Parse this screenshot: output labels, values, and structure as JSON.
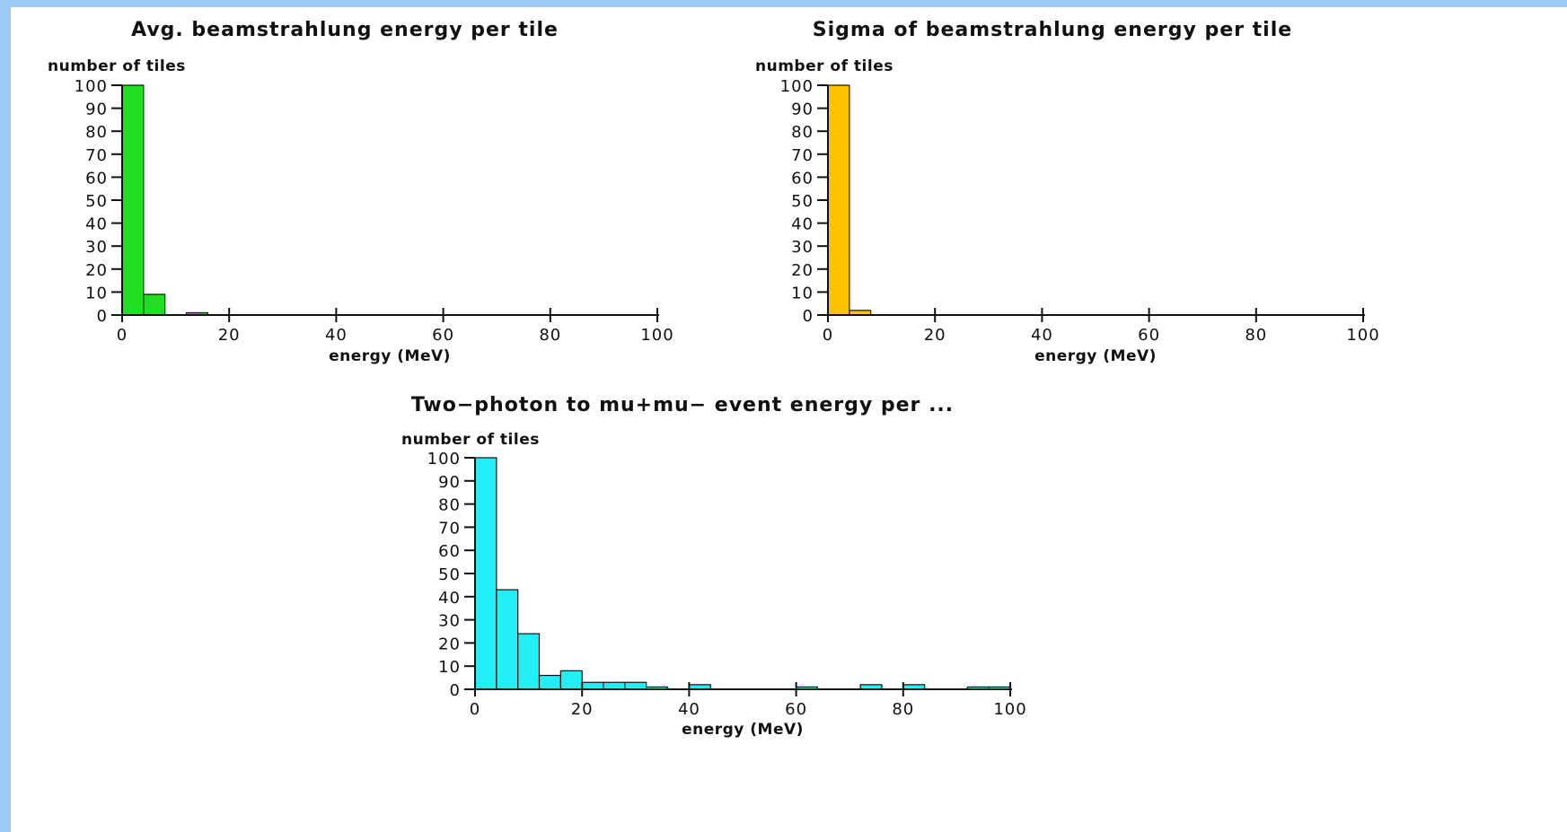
{
  "chart_data": [
    {
      "type": "bar",
      "title": "Avg. beamstrahlung energy per tile",
      "ylabel": "number of tiles",
      "xlabel": "energy (MeV)",
      "bin_width": 4,
      "bins": [
        {
          "x": 0,
          "value": 100
        },
        {
          "x": 4,
          "value": 9
        },
        {
          "x": 12,
          "value": 1
        }
      ],
      "xlim": [
        0,
        100
      ],
      "ylim": [
        0,
        100
      ],
      "xticks": [
        0,
        20,
        40,
        60,
        80,
        100
      ],
      "yticks": [
        0,
        10,
        20,
        30,
        40,
        50,
        60,
        70,
        80,
        90,
        100
      ],
      "color": "#22dd22",
      "grid": false
    },
    {
      "type": "bar",
      "title": "Sigma of beamstrahlung energy per tile",
      "ylabel": "number of tiles",
      "xlabel": "energy (MeV)",
      "bin_width": 4,
      "bins": [
        {
          "x": 0,
          "value": 100
        },
        {
          "x": 4,
          "value": 2
        }
      ],
      "xlim": [
        0,
        100
      ],
      "ylim": [
        0,
        100
      ],
      "xticks": [
        0,
        20,
        40,
        60,
        80,
        100
      ],
      "yticks": [
        0,
        10,
        20,
        30,
        40,
        50,
        60,
        70,
        80,
        90,
        100
      ],
      "color": "#ffc200",
      "grid": false
    },
    {
      "type": "bar",
      "title": "Two−photon to mu+mu− event energy per ...",
      "ylabel": "number of tiles",
      "xlabel": "energy (MeV)",
      "bin_width": 4,
      "bins": [
        {
          "x": 0,
          "value": 100
        },
        {
          "x": 4,
          "value": 43
        },
        {
          "x": 8,
          "value": 24
        },
        {
          "x": 12,
          "value": 6
        },
        {
          "x": 16,
          "value": 8
        },
        {
          "x": 20,
          "value": 3
        },
        {
          "x": 24,
          "value": 3
        },
        {
          "x": 28,
          "value": 3
        },
        {
          "x": 32,
          "value": 1
        },
        {
          "x": 40,
          "value": 2
        },
        {
          "x": 60,
          "value": 1
        },
        {
          "x": 72,
          "value": 2
        },
        {
          "x": 80,
          "value": 2
        },
        {
          "x": 92,
          "value": 1
        },
        {
          "x": 96,
          "value": 1
        }
      ],
      "xlim": [
        0,
        100
      ],
      "ylim": [
        0,
        100
      ],
      "xticks": [
        0,
        20,
        40,
        60,
        80,
        100
      ],
      "yticks": [
        0,
        10,
        20,
        30,
        40,
        50,
        60,
        70,
        80,
        90,
        100
      ],
      "color": "#22eef5",
      "grid": false
    }
  ]
}
